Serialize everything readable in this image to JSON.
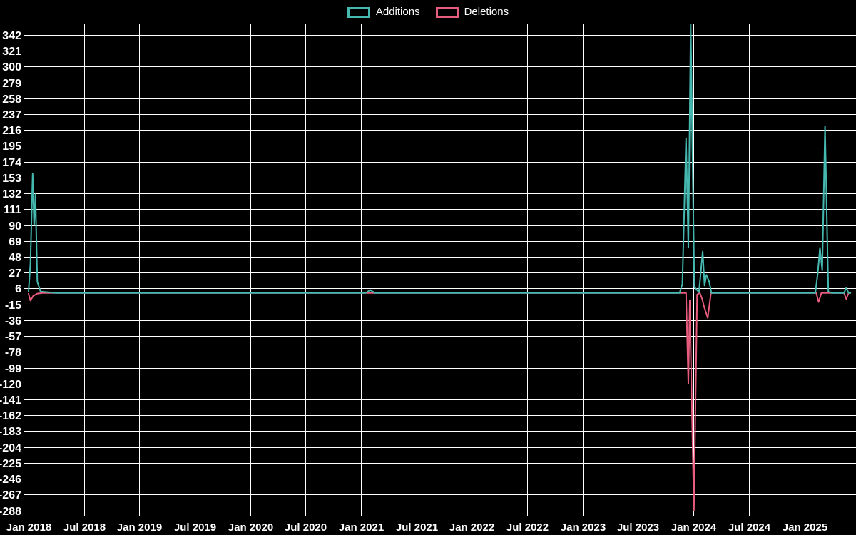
{
  "colors": {
    "background": "#000000",
    "grid": "#ffffff",
    "text": "#ffffff",
    "additions": "#45b8b0",
    "deletions": "#e85c7d"
  },
  "legend": {
    "items": [
      {
        "label": "Additions",
        "color": "#45b8b0"
      },
      {
        "label": "Deletions",
        "color": "#e85c7d"
      }
    ]
  },
  "chart_data": {
    "type": "line",
    "title": "",
    "xlabel": "",
    "ylabel": "",
    "grid": true,
    "legend_position": "top-center",
    "x_unit": "months_since_2018_01",
    "xlim": [
      0,
      89.6
    ],
    "ylim": [
      -296,
      357
    ],
    "y_tick_step": 21,
    "y_tick_labels": [
      342,
      321,
      300,
      279,
      258,
      237,
      216,
      195,
      174,
      153,
      132,
      111,
      90,
      69,
      48,
      27,
      6,
      -15,
      -36,
      -57,
      -78,
      -99,
      -120,
      -141,
      -162,
      -183,
      -204,
      -225,
      -246,
      -267,
      -288
    ],
    "x_tick_labels": [
      "Jan 2018",
      "Jul 2018",
      "Jan 2019",
      "Jul 2019",
      "Jan 2020",
      "Jul 2020",
      "Jan 2021",
      "Jul 2021",
      "Jan 2022",
      "Jul 2022",
      "Jan 2023",
      "Jul 2023",
      "Jan 2024",
      "Jul 2024",
      "Jan 2025"
    ],
    "x_tick_months": [
      0,
      6,
      12,
      18,
      24,
      30,
      36,
      42,
      48,
      54,
      60,
      66,
      72,
      78,
      84
    ],
    "series": [
      {
        "name": "Additions",
        "color": "#45b8b0",
        "points": [
          [
            0,
            2
          ],
          [
            0.2,
            38
          ],
          [
            0.45,
            158
          ],
          [
            0.6,
            90
          ],
          [
            0.75,
            131
          ],
          [
            0.95,
            15
          ],
          [
            1.3,
            2
          ],
          [
            3,
            0
          ],
          [
            36.5,
            0
          ],
          [
            37,
            4
          ],
          [
            37.5,
            0
          ],
          [
            70.5,
            0
          ],
          [
            70.8,
            12
          ],
          [
            71.2,
            205
          ],
          [
            71.45,
            60
          ],
          [
            71.7,
            356
          ],
          [
            72.1,
            8
          ],
          [
            72.6,
            1
          ],
          [
            73,
            55
          ],
          [
            73.2,
            10
          ],
          [
            73.4,
            24
          ],
          [
            73.7,
            15
          ],
          [
            73.95,
            0
          ],
          [
            85.2,
            0
          ],
          [
            85.45,
            25
          ],
          [
            85.7,
            60
          ],
          [
            85.95,
            30
          ],
          [
            86.25,
            221
          ],
          [
            86.6,
            2
          ],
          [
            87,
            0
          ],
          [
            88.3,
            0
          ],
          [
            88.55,
            7
          ],
          [
            88.8,
            0
          ],
          [
            89,
            0
          ]
        ]
      },
      {
        "name": "Deletions",
        "color": "#e85c7d",
        "points": [
          [
            0,
            -1
          ],
          [
            0.2,
            -10
          ],
          [
            0.5,
            -4
          ],
          [
            0.9,
            -1
          ],
          [
            1.5,
            0
          ],
          [
            71.2,
            0
          ],
          [
            71.45,
            -120
          ],
          [
            71.6,
            -10
          ],
          [
            72.05,
            -288
          ],
          [
            72.4,
            -2
          ],
          [
            72.7,
            0
          ],
          [
            72.95,
            -8
          ],
          [
            73.15,
            -18
          ],
          [
            73.55,
            -33
          ],
          [
            73.9,
            0
          ],
          [
            85.3,
            0
          ],
          [
            85.55,
            -12
          ],
          [
            85.85,
            0
          ],
          [
            88.3,
            0
          ],
          [
            88.55,
            -8
          ],
          [
            88.8,
            0
          ],
          [
            89,
            0
          ]
        ]
      }
    ]
  }
}
